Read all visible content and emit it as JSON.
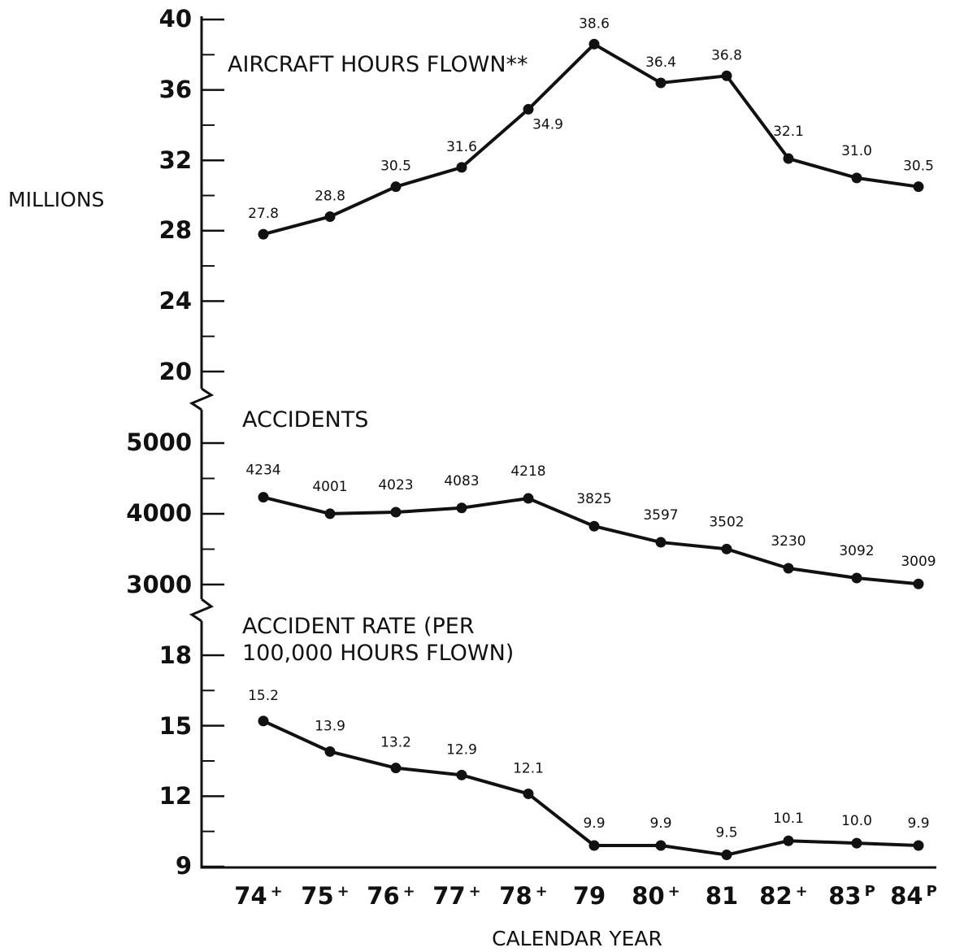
{
  "chart_data": {
    "type": "line",
    "x": [
      "74+",
      "75+",
      "76+",
      "77+",
      "78+",
      "79",
      "80+",
      "81",
      "82+",
      "83P",
      "84P"
    ],
    "x_ticks": [
      {
        "main": "74",
        "sup": "+"
      },
      {
        "main": "75",
        "sup": "+"
      },
      {
        "main": "76",
        "sup": "+"
      },
      {
        "main": "77",
        "sup": "+"
      },
      {
        "main": "78",
        "sup": "+"
      },
      {
        "main": "79",
        "sup": ""
      },
      {
        "main": "80",
        "sup": "+"
      },
      {
        "main": "81",
        "sup": ""
      },
      {
        "main": "82",
        "sup": "+"
      },
      {
        "main": "83",
        "sup": "P"
      },
      {
        "main": "84",
        "sup": "P"
      }
    ],
    "xlabel": "CALENDAR YEAR",
    "ylabel": "MILLIONS",
    "grid": false,
    "panels": [
      {
        "title": "AIRCRAFT HOURS FLOWN**",
        "ylim": [
          20,
          40
        ],
        "yticks": [
          "40",
          "36",
          "32",
          "28",
          "24",
          "20"
        ],
        "values": [
          27.8,
          28.8,
          30.5,
          31.6,
          34.9,
          38.6,
          36.4,
          36.8,
          32.1,
          31.0,
          30.5
        ],
        "labels": [
          "27.8",
          "28.8",
          "30.5",
          "31.6",
          "34.9",
          "38.6",
          "36.4",
          "36.8",
          "32.1",
          "31.0",
          "30.5"
        ]
      },
      {
        "title": "ACCIDENTS",
        "ylim": [
          3000,
          5000
        ],
        "yticks": [
          "5000",
          "4000",
          "3000"
        ],
        "values": [
          4234,
          4001,
          4023,
          4083,
          4218,
          3825,
          3597,
          3502,
          3230,
          3092,
          3009
        ],
        "labels": [
          "4234",
          "4001",
          "4023",
          "4083",
          "4218",
          "3825",
          "3597",
          "3502",
          "3230",
          "3092",
          "3009"
        ]
      },
      {
        "title_lines": [
          "ACCIDENT RATE (PER",
          "100,000 HOURS FLOWN)"
        ],
        "ylim": [
          9,
          18
        ],
        "yticks": [
          "18",
          "15",
          "12",
          "9"
        ],
        "values": [
          15.2,
          13.9,
          13.2,
          12.9,
          12.1,
          9.9,
          9.9,
          9.5,
          10.1,
          10.0,
          9.9
        ],
        "labels": [
          "15.2",
          "13.9",
          "13.2",
          "12.9",
          "12.1",
          "9.9",
          "9.9",
          "9.5",
          "10.1",
          "10.0",
          "9.9"
        ]
      }
    ]
  }
}
